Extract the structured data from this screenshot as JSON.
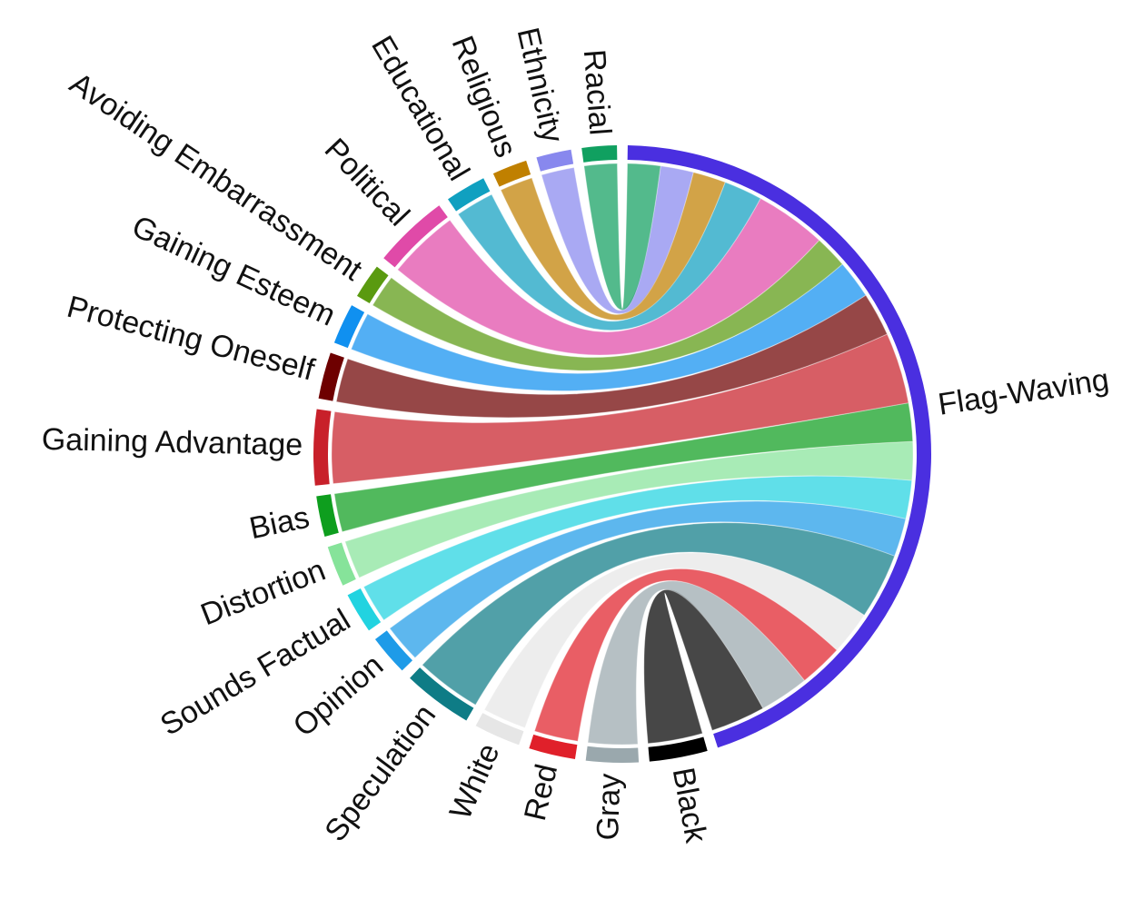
{
  "chart_data": {
    "type": "chord",
    "nodes": [
      {
        "name": "Flag-Waving",
        "color": "#4a2fe0"
      },
      {
        "name": "Black",
        "color": "#000000"
      },
      {
        "name": "Gray",
        "color": "#9aa8ad"
      },
      {
        "name": "Red",
        "color": "#e0202a"
      },
      {
        "name": "White",
        "color": "#e6e6e6"
      },
      {
        "name": "Speculation",
        "color": "#0e7c86"
      },
      {
        "name": "Opinion",
        "color": "#1e9be8"
      },
      {
        "name": "Sounds Factual",
        "color": "#22d3e0"
      },
      {
        "name": "Distortion",
        "color": "#86e39a"
      },
      {
        "name": "Bias",
        "color": "#0e9e1e"
      },
      {
        "name": "Gaining Advantage",
        "color": "#c8202a"
      },
      {
        "name": "Protecting Oneself",
        "color": "#6e0000"
      },
      {
        "name": "Gaining Esteem",
        "color": "#1090f0"
      },
      {
        "name": "Avoiding Embarrassment",
        "color": "#5a9a10"
      },
      {
        "name": "Political",
        "color": "#e04aa8"
      },
      {
        "name": "Educational",
        "color": "#10a0c0"
      },
      {
        "name": "Religious",
        "color": "#c08000"
      },
      {
        "name": "Ethnicity",
        "color": "#8888ee"
      },
      {
        "name": "Racial",
        "color": "#10a060"
      }
    ],
    "links": [
      {
        "source": 1,
        "target": 0,
        "value": 10
      },
      {
        "source": 2,
        "target": 0,
        "value": 9
      },
      {
        "source": 3,
        "target": 0,
        "value": 8
      },
      {
        "source": 4,
        "target": 0,
        "value": 8
      },
      {
        "source": 5,
        "target": 0,
        "value": 12
      },
      {
        "source": 6,
        "target": 0,
        "value": 7
      },
      {
        "source": 7,
        "target": 0,
        "value": 7
      },
      {
        "source": 8,
        "target": 0,
        "value": 7
      },
      {
        "source": 9,
        "target": 0,
        "value": 7
      },
      {
        "source": 10,
        "target": 0,
        "value": 13
      },
      {
        "source": 11,
        "target": 0,
        "value": 8
      },
      {
        "source": 12,
        "target": 0,
        "value": 7
      },
      {
        "source": 13,
        "target": 0,
        "value": 6
      },
      {
        "source": 14,
        "target": 0,
        "value": 13
      },
      {
        "source": 15,
        "target": 0,
        "value": 7
      },
      {
        "source": 16,
        "target": 0,
        "value": 6
      },
      {
        "source": 17,
        "target": 0,
        "value": 6
      },
      {
        "source": 18,
        "target": 0,
        "value": 6
      }
    ]
  }
}
